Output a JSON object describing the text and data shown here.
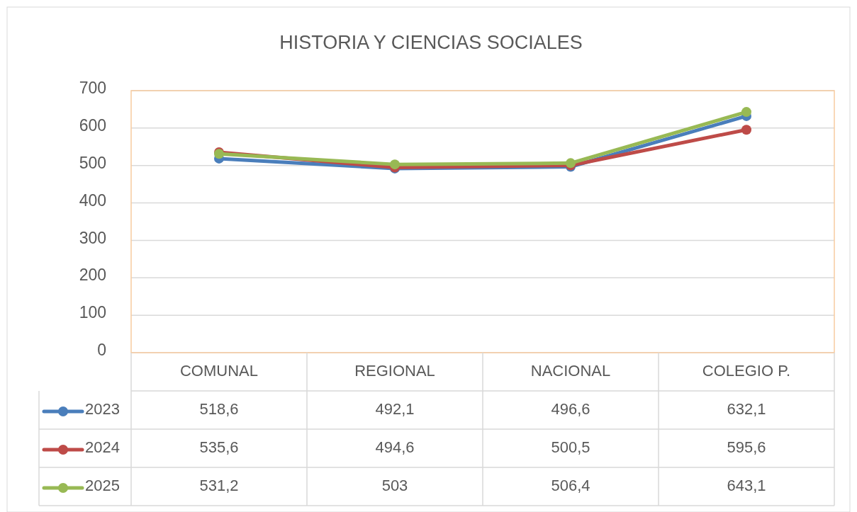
{
  "chart_data": {
    "type": "line",
    "title": "HISTORIA Y CIENCIAS SOCIALES",
    "categories": [
      "COMUNAL",
      "REGIONAL",
      "NACIONAL",
      "COLEGIO P."
    ],
    "series": [
      {
        "name": "2023",
        "color": "#4a7ebb",
        "values": [
          518.6,
          492.1,
          496.6,
          632.1
        ],
        "value_labels": [
          "518,6",
          "492,1",
          "496,6",
          "632,1"
        ]
      },
      {
        "name": "2024",
        "color": "#be4b48",
        "values": [
          535.6,
          494.6,
          500.5,
          595.6
        ],
        "value_labels": [
          "535,6",
          "494,6",
          "500,5",
          "595,6"
        ]
      },
      {
        "name": "2025",
        "color": "#98b954",
        "values": [
          531.2,
          503,
          506.4,
          643.1
        ],
        "value_labels": [
          "531,2",
          "503",
          "506,4",
          "643,1"
        ]
      }
    ],
    "ylim": [
      0,
      700
    ],
    "yticks": [
      0,
      100,
      200,
      300,
      400,
      500,
      600,
      700
    ],
    "grid": "y",
    "legend": "bottom",
    "marker": "circle"
  }
}
